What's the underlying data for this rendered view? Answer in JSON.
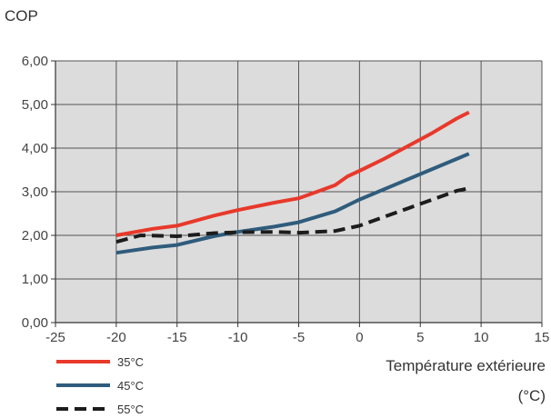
{
  "chart_data": {
    "type": "line",
    "title": "",
    "ylabel": "COP",
    "xlabel_line1": "Température extérieure",
    "xlabel_line2": "(°C)",
    "xlim": [
      -25,
      15
    ],
    "ylim": [
      0,
      6
    ],
    "xticks": [
      -25,
      -20,
      -15,
      -10,
      -5,
      0,
      5,
      10,
      15
    ],
    "yticks": [
      0,
      1,
      2,
      3,
      4,
      5,
      6
    ],
    "xtick_labels": [
      "-25",
      "-20",
      "-15",
      "-10",
      "-5",
      "0",
      "5",
      "10",
      "15"
    ],
    "ytick_labels": [
      "0,00",
      "1,00",
      "2,00",
      "3,00",
      "4,00",
      "5,00",
      "6,00"
    ],
    "grid": true,
    "plot_background": "#dcdcdc",
    "grid_color": "#555555",
    "legend_position": "bottom-left",
    "series": [
      {
        "name": "35°C",
        "color": "#e8392b",
        "dash": "solid",
        "x": [
          -20,
          -17,
          -15,
          -12,
          -10,
          -7,
          -5,
          -3,
          -2,
          -1,
          0,
          2,
          4,
          6,
          8,
          9
        ],
        "y": [
          2.0,
          2.15,
          2.22,
          2.45,
          2.58,
          2.75,
          2.85,
          3.05,
          3.15,
          3.35,
          3.48,
          3.75,
          4.05,
          4.35,
          4.68,
          4.82
        ]
      },
      {
        "name": "45°C",
        "color": "#2f5c7c",
        "dash": "solid",
        "x": [
          -20,
          -17,
          -15,
          -12,
          -10,
          -7,
          -5,
          -2,
          0,
          3,
          6,
          9
        ],
        "y": [
          1.6,
          1.72,
          1.78,
          1.98,
          2.08,
          2.2,
          2.3,
          2.55,
          2.82,
          3.17,
          3.52,
          3.87
        ]
      },
      {
        "name": "55°C",
        "color": "#1c1c1c",
        "dash": "dashed",
        "x": [
          -20,
          -18,
          -15,
          -12,
          -10,
          -7,
          -5,
          -2,
          0,
          2,
          4,
          6,
          8,
          9
        ],
        "y": [
          1.85,
          2.0,
          1.98,
          2.05,
          2.07,
          2.08,
          2.06,
          2.1,
          2.22,
          2.42,
          2.62,
          2.82,
          3.02,
          3.08
        ]
      }
    ]
  }
}
